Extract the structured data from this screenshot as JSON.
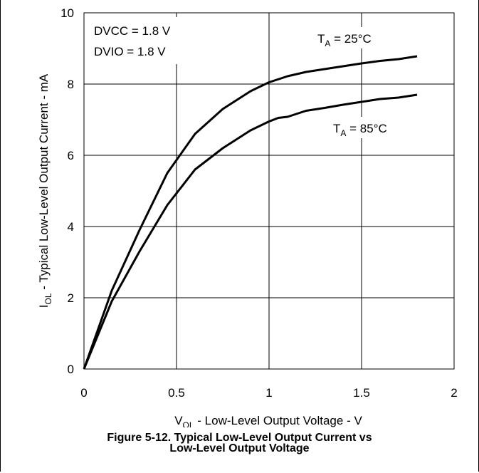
{
  "chart_data": {
    "type": "line",
    "xlabel": {
      "main": "V",
      "sub": "OL",
      "rest": " - Low-Level Output Voltage - V"
    },
    "ylabel": {
      "main": "I",
      "sub": "OL",
      "rest": " - Typical Low-Level Output Current - mA"
    },
    "xlim": [
      0,
      2
    ],
    "ylim": [
      0,
      10
    ],
    "xticks": [
      "0",
      "0.5",
      "1",
      "1.5",
      "2"
    ],
    "yticks": [
      "0",
      "2",
      "4",
      "6",
      "8",
      "10"
    ],
    "grid": true,
    "conditions": [
      "DVCC = 1.8 V",
      "DVIO = 1.8 V"
    ],
    "series": [
      {
        "name": "TA = 25°C",
        "label": {
          "main": "T",
          "sub": "A",
          "rest": " = 25°C"
        },
        "x": [
          0,
          0.15,
          0.3,
          0.45,
          0.6,
          0.75,
          0.9,
          1.0,
          1.1,
          1.2,
          1.3,
          1.4,
          1.5,
          1.6,
          1.7,
          1.8
        ],
        "y": [
          0,
          2.2,
          3.9,
          5.5,
          6.6,
          7.3,
          7.8,
          8.05,
          8.22,
          8.34,
          8.42,
          8.5,
          8.58,
          8.65,
          8.7,
          8.78
        ]
      },
      {
        "name": "TA = 85°C",
        "label": {
          "main": "T",
          "sub": "A",
          "rest": " = 85°C"
        },
        "x": [
          0,
          0.15,
          0.3,
          0.45,
          0.6,
          0.75,
          0.9,
          1.0,
          1.05,
          1.1,
          1.2,
          1.3,
          1.4,
          1.5,
          1.6,
          1.7,
          1.8
        ],
        "y": [
          0,
          1.9,
          3.3,
          4.6,
          5.6,
          6.2,
          6.7,
          6.95,
          7.05,
          7.08,
          7.25,
          7.33,
          7.42,
          7.5,
          7.58,
          7.62,
          7.7
        ]
      }
    ]
  },
  "caption": {
    "line1": "Figure 5-12. Typical Low-Level Output Current vs",
    "line2": "Low-Level Output Voltage"
  }
}
